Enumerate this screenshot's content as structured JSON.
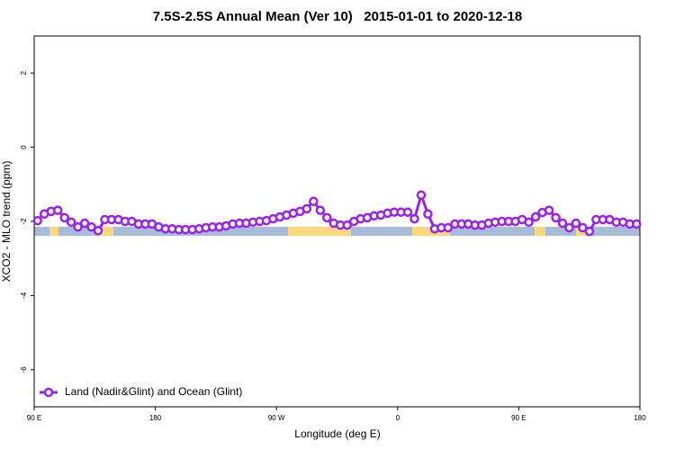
{
  "chart_data": {
    "type": "line",
    "title": "7.5S-2.5S Annual Mean (Ver 10)   2015-01-01 to 2020-12-18",
    "x_label": "Longitude (deg E)",
    "y_label": "XCO2 - MLO trend (ppm)",
    "xlim": [
      90,
      540
    ],
    "ylim": [
      -7,
      3
    ],
    "xticks": [
      {
        "value": 90,
        "label": "90 E"
      },
      180,
      {
        "value": 270,
        "label": "90 W"
      },
      {
        "value": 360,
        "label": "0"
      },
      {
        "value": 450,
        "label": "90 E"
      },
      {
        "value": 540,
        "label": "180"
      }
    ],
    "yticks": [
      -6,
      -4,
      -2,
      0,
      2
    ],
    "x": [
      92.5,
      97.5,
      102.5,
      107.5,
      112.5,
      117.5,
      122.5,
      127.5,
      132.5,
      137.5,
      142.5,
      147.5,
      152.5,
      157.5,
      162.5,
      167.5,
      172.5,
      177.5,
      182.5,
      187.5,
      192.5,
      197.5,
      202.5,
      207.5,
      212.5,
      217.5,
      222.5,
      227.5,
      232.5,
      237.5,
      242.5,
      247.5,
      252.5,
      257.5,
      262.5,
      267.5,
      272.5,
      277.5,
      282.5,
      287.5,
      292.5,
      297.5,
      302.5,
      307.5,
      312.5,
      317.5,
      322.5,
      327.5,
      332.5,
      337.5,
      342.5,
      347.5,
      352.5,
      357.5,
      362.5,
      367.5,
      372.5,
      377.5,
      382.5,
      387.5,
      392.5,
      397.5,
      402.5,
      407.5,
      412.5,
      417.5,
      422.5,
      427.5,
      432.5,
      437.5,
      442.5,
      447.5,
      452.5,
      457.5,
      462.5,
      467.5,
      472.5,
      477.5,
      482.5,
      487.5,
      492.5,
      497.5,
      502.5,
      507.5,
      512.5,
      517.5,
      522.5,
      527.5,
      532.5,
      537.5
    ],
    "series": [
      {
        "name": "Land (Nadir&Glint) and Ocean (Glint)",
        "color": "#9b22e8",
        "values": [
          -1.98,
          -1.8,
          -1.73,
          -1.7,
          -1.9,
          -2.02,
          -2.15,
          -2.05,
          -2.15,
          -2.25,
          -1.95,
          -1.95,
          -1.95,
          -2.0,
          -2.0,
          -2.07,
          -2.07,
          -2.07,
          -2.15,
          -2.2,
          -2.2,
          -2.22,
          -2.22,
          -2.22,
          -2.2,
          -2.17,
          -2.15,
          -2.15,
          -2.12,
          -2.07,
          -2.05,
          -2.05,
          -2.02,
          -2.0,
          -1.98,
          -1.93,
          -1.88,
          -1.83,
          -1.78,
          -1.73,
          -1.66,
          -1.46,
          -1.7,
          -1.9,
          -2.05,
          -2.1,
          -2.1,
          -2.0,
          -1.93,
          -1.9,
          -1.85,
          -1.83,
          -1.78,
          -1.75,
          -1.75,
          -1.75,
          -1.93,
          -1.29,
          -1.8,
          -2.2,
          -2.17,
          -2.17,
          -2.07,
          -2.07,
          -2.07,
          -2.1,
          -2.1,
          -2.05,
          -2.02,
          -2.0,
          -2.0,
          -2.0,
          -1.95,
          -2.02,
          -1.88,
          -1.76,
          -1.7,
          -1.9,
          -2.05,
          -2.17,
          -2.05,
          -2.17,
          -2.27,
          -1.95,
          -1.95,
          -1.95,
          -2.02,
          -2.02,
          -2.07,
          -2.07
        ]
      }
    ]
  }
}
